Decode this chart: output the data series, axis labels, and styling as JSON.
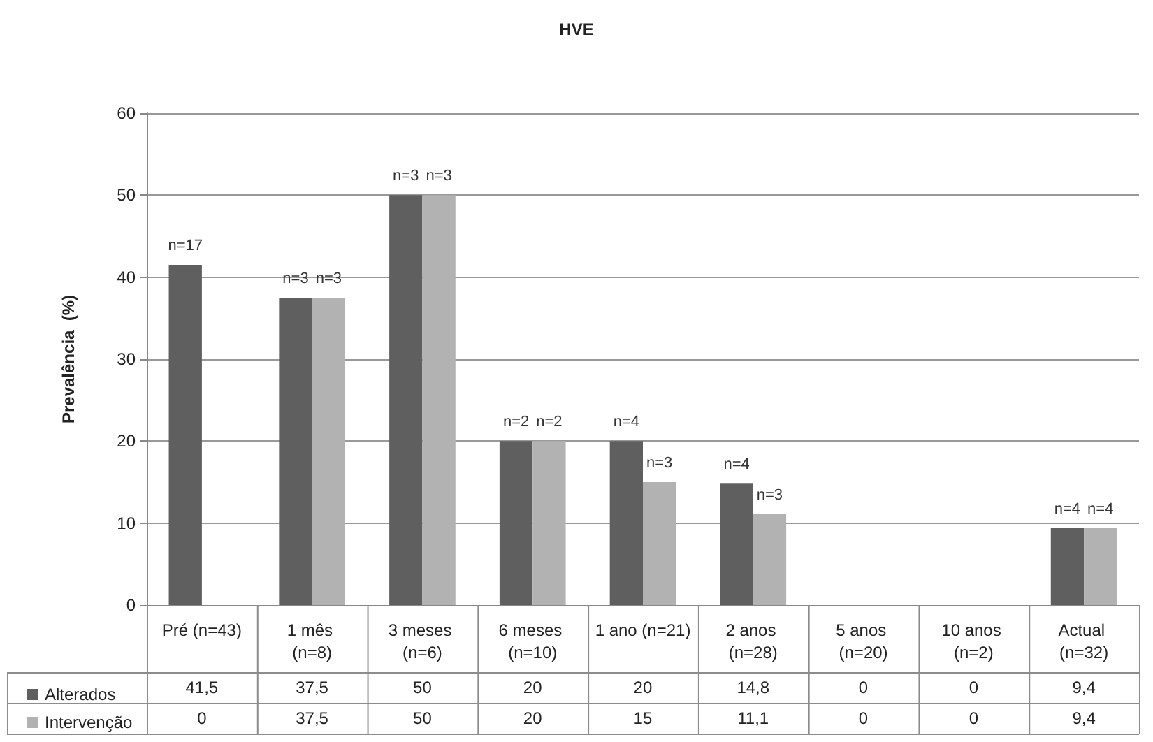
{
  "chart_data": {
    "type": "bar",
    "title": "HVE",
    "ylabel": "Prevalência  (%)",
    "categories": [
      "Pré (n=43)",
      "1 mês (n=8)",
      "3 meses (n=6)",
      "6 meses (n=10)",
      "1 ano (n=21)",
      "2 anos (n=28)",
      "5 anos (n=20)",
      "10 anos (n=2)",
      "Actual (n=32)"
    ],
    "series": [
      {
        "name": "Alterados",
        "color": "#5f5f5f",
        "values": [
          41.5,
          37.5,
          50,
          20,
          20,
          14.8,
          0,
          0,
          9.4
        ],
        "value_labels": [
          "41,5",
          "37,5",
          "50",
          "20",
          "20",
          "14,8",
          "0",
          "0",
          "9,4"
        ]
      },
      {
        "name": "Intervenção",
        "color": "#b2b2b2",
        "values": [
          0,
          37.5,
          50,
          20,
          15,
          11.1,
          0,
          0,
          9.4
        ],
        "value_labels": [
          "0",
          "37,5",
          "50",
          "20",
          "15",
          "11,1",
          "0",
          "0",
          "9,4"
        ]
      }
    ],
    "annotations": [
      {
        "text": "n=17",
        "x": "Pré (n=43)",
        "y": 41.5
      },
      {
        "text": "n=3",
        "x": "1 mês (n=8)",
        "y": 37.5
      },
      {
        "text": "n=3",
        "x": "1 mês (n=8)",
        "y": 37.5
      },
      {
        "text": "n=3",
        "x": "3 meses (n=6)",
        "y": 50
      },
      {
        "text": "n=3",
        "x": "3 meses (n=6)",
        "y": 50
      },
      {
        "text": "n=2",
        "x": "6 meses (n=10)",
        "y": 20
      },
      {
        "text": "n=2",
        "x": "6 meses (n=10)",
        "y": 20
      },
      {
        "text": "n=4",
        "x": "1 ano (n=21)",
        "y": 20
      },
      {
        "text": "n=3",
        "x": "1 ano (n=21)",
        "y": 15
      },
      {
        "text": "n=4",
        "x": "2 anos (n=28)",
        "y": 14.8
      },
      {
        "text": "n=3",
        "x": "2 anos (n=28)",
        "y": 11.1
      },
      {
        "text": "n=4",
        "x": "Actual (n=32)",
        "y": 9.4
      },
      {
        "text": "n=4",
        "x": "Actual (n=32)",
        "y": 9.4
      }
    ],
    "ylim": [
      0,
      60
    ],
    "yticks": [
      0,
      10,
      20,
      30,
      40,
      50,
      60
    ],
    "grid": "y",
    "legend": "bottom left"
  }
}
